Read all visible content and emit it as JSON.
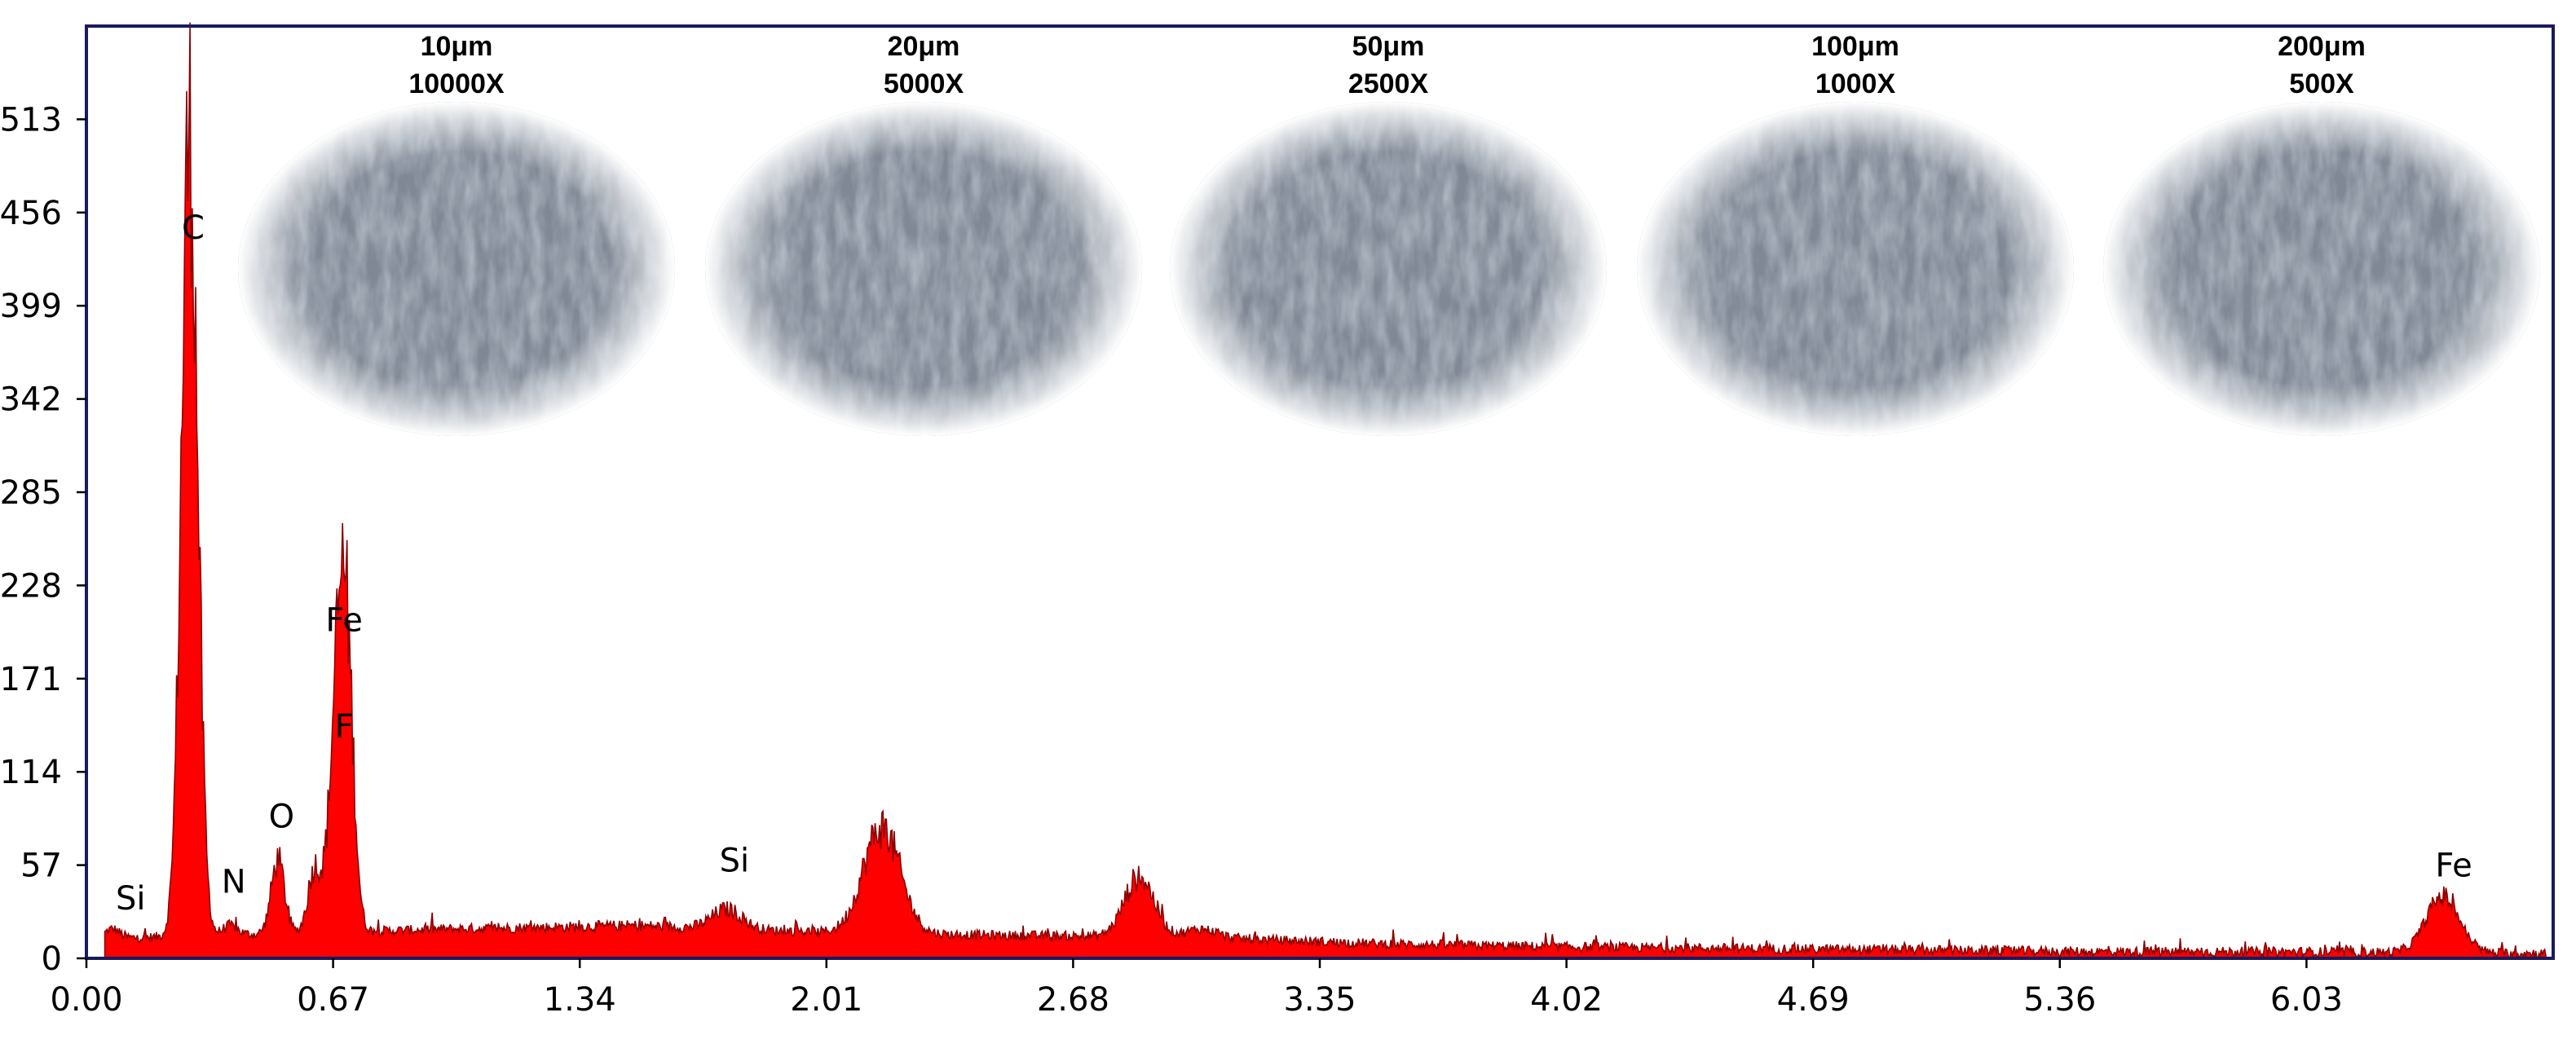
{
  "chart_data": {
    "type": "area",
    "title": "",
    "xlabel": "",
    "ylabel": "",
    "xlim": [
      0.0,
      6.7
    ],
    "ylim": [
      0,
      570
    ],
    "x_ticks": [
      "0.00",
      "0.67",
      "1.34",
      "2.01",
      "2.68",
      "3.35",
      "4.02",
      "4.69",
      "5.36",
      "6.03"
    ],
    "y_ticks": [
      "0",
      "57",
      "114",
      "171",
      "228",
      "285",
      "342",
      "399",
      "456",
      "513"
    ],
    "grid": false,
    "fill_color": "#ff0000",
    "line_color": "#8b0000",
    "frame_color": "#1a1a5e",
    "series": [
      {
        "baseline": [
          {
            "x": 0.05,
            "y": 12
          },
          {
            "x": 0.5,
            "y": 15
          },
          {
            "x": 1.0,
            "y": 18
          },
          {
            "x": 1.5,
            "y": 20
          },
          {
            "x": 2.0,
            "y": 16
          },
          {
            "x": 2.5,
            "y": 14
          },
          {
            "x": 3.0,
            "y": 13
          },
          {
            "x": 3.5,
            "y": 9
          },
          {
            "x": 4.0,
            "y": 7
          },
          {
            "x": 4.5,
            "y": 6
          },
          {
            "x": 5.0,
            "y": 5
          },
          {
            "x": 5.5,
            "y": 4
          },
          {
            "x": 6.0,
            "y": 4
          },
          {
            "x": 6.7,
            "y": 3
          }
        ],
        "peaks": [
          {
            "element": "Si",
            "x": 0.07,
            "y": 18,
            "width": 0.02
          },
          {
            "element": "C",
            "x": 0.28,
            "y": 505,
            "width": 0.022
          },
          {
            "element": "N",
            "x": 0.39,
            "y": 20,
            "width": 0.02
          },
          {
            "element": "O",
            "x": 0.52,
            "y": 60,
            "width": 0.018
          },
          {
            "element": "",
            "x": 0.62,
            "y": 55,
            "width": 0.018
          },
          {
            "element": "Fe",
            "x": 0.705,
            "y": 190,
            "width": 0.02
          },
          {
            "element": "F",
            "x": 0.677,
            "y": 120,
            "width": 0.02
          },
          {
            "element": "Si",
            "x": 1.74,
            "y": 30,
            "width": 0.04
          },
          {
            "element": "",
            "x": 2.16,
            "y": 80,
            "width": 0.05
          },
          {
            "element": "",
            "x": 2.86,
            "y": 50,
            "width": 0.04
          },
          {
            "element": "",
            "x": 3.03,
            "y": 18,
            "width": 0.04
          },
          {
            "element": "Fe",
            "x": 6.4,
            "y": 38,
            "width": 0.045
          }
        ]
      }
    ],
    "annotations": [
      {
        "text": "Si",
        "x": 0.12,
        "y": 30
      },
      {
        "text": "C",
        "x": 0.29,
        "y": 440
      },
      {
        "text": "N",
        "x": 0.4,
        "y": 40
      },
      {
        "text": "O",
        "x": 0.53,
        "y": 80
      },
      {
        "text": "Fe",
        "x": 0.7,
        "y": 200
      },
      {
        "text": "F",
        "x": 0.7,
        "y": 135
      },
      {
        "text": "Si",
        "x": 1.76,
        "y": 53
      },
      {
        "text": "Fe",
        "x": 6.43,
        "y": 50
      }
    ]
  },
  "sem_images": [
    {
      "scale": "10μm",
      "magnification": "10000X"
    },
    {
      "scale": "20μm",
      "magnification": "5000X"
    },
    {
      "scale": "50μm",
      "magnification": "2500X"
    },
    {
      "scale": "100μm",
      "magnification": "1000X"
    },
    {
      "scale": "200μm",
      "magnification": "500X"
    }
  ]
}
